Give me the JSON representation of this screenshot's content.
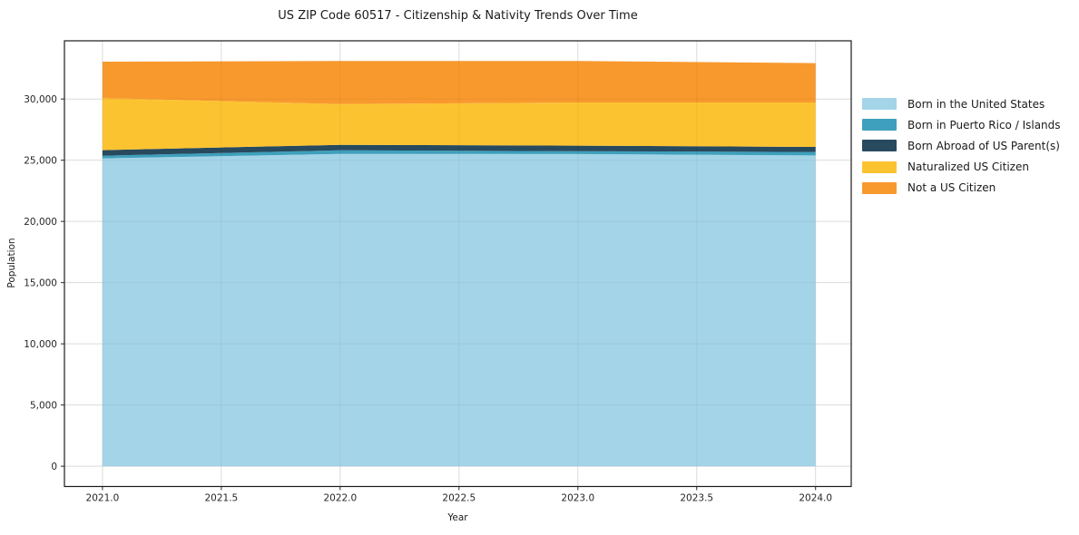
{
  "title": "US ZIP Code 60517 - Citizenship & Nativity Trends Over Time",
  "axes": {
    "xlabel": "Year",
    "ylabel": "Population"
  },
  "chart_data": {
    "type": "area",
    "stacked": true,
    "title": "US ZIP Code 60517 - Citizenship & Nativity Trends Over Time",
    "xlabel": "Year",
    "ylabel": "Population",
    "x": [
      2021,
      2022,
      2023,
      2024
    ],
    "series": [
      {
        "name": "Born in the United States",
        "color": "#a4d4e8",
        "values": [
          25150,
          25520,
          25500,
          25390
        ]
      },
      {
        "name": "Born in Puerto Rico / Islands",
        "color": "#3ea0bc",
        "values": [
          220,
          290,
          240,
          280
        ]
      },
      {
        "name": "Born Abroad of US Parent(s)",
        "color": "#274a5e",
        "values": [
          450,
          450,
          450,
          420
        ]
      },
      {
        "name": "Naturalized US Citizen",
        "color": "#fcc331",
        "values": [
          4250,
          3330,
          3530,
          3630
        ]
      },
      {
        "name": "Not a US Citizen",
        "color": "#f8992e",
        "values": [
          2980,
          3510,
          3380,
          3210
        ]
      }
    ],
    "xlim": [
      2020.84,
      2024.15
    ],
    "ylim": [
      -1655,
      34755
    ],
    "x_ticks": [
      2021.0,
      2021.5,
      2022.0,
      2022.5,
      2023.0,
      2023.5,
      2024.0
    ],
    "x_tick_labels": [
      "2021.0",
      "2021.5",
      "2022.0",
      "2022.5",
      "2023.0",
      "2023.5",
      "2024.0"
    ],
    "y_ticks": [
      0,
      5000,
      10000,
      15000,
      20000,
      25000,
      30000
    ],
    "y_tick_labels": [
      "0",
      "5,000",
      "10,000",
      "15,000",
      "20,000",
      "25,000",
      "30,000"
    ],
    "grid": true,
    "grid_color": "#e7e7e7",
    "spine_color": "#1a1a1a",
    "tick_color": "#262626",
    "legend_position": "right-outside"
  }
}
